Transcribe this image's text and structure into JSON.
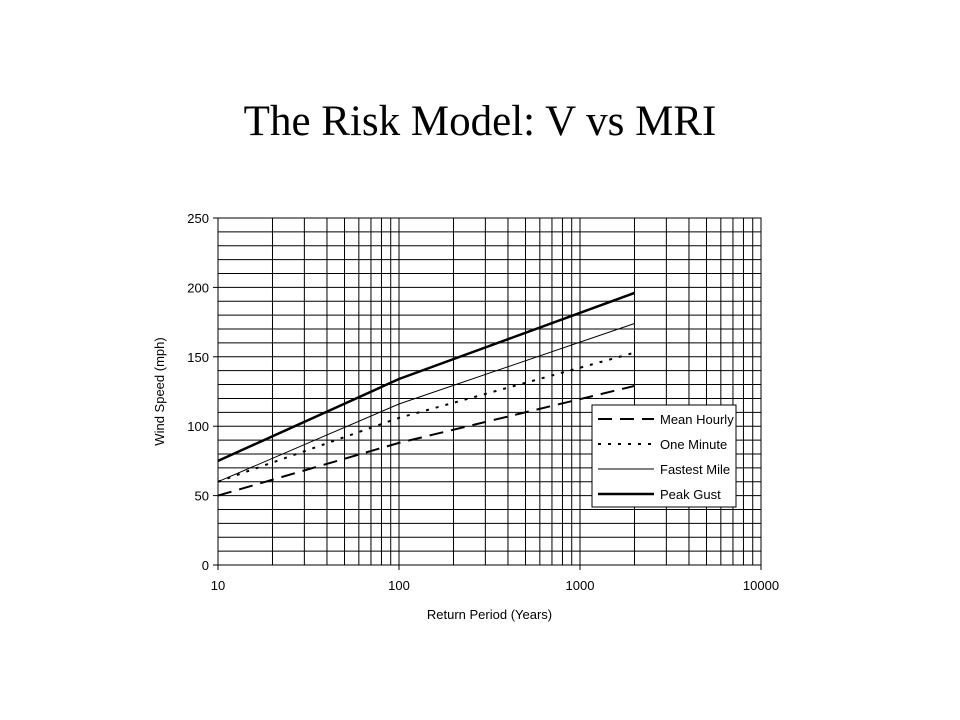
{
  "slide": {
    "title": "The Risk Model: V vs MRI"
  },
  "chart_data": {
    "type": "line",
    "title": "",
    "xlabel": "Return Period (Years)",
    "ylabel": "Wind Speed (mph)",
    "x_scale": "log",
    "xlim": [
      10,
      10000
    ],
    "ylim": [
      0,
      250
    ],
    "x_ticks": [
      "10",
      "100",
      "1000",
      "10000"
    ],
    "y_ticks": [
      "0",
      "50",
      "100",
      "150",
      "200",
      "250"
    ],
    "grid": true,
    "legend_position": "lower-right",
    "series": [
      {
        "name": "Mean Hourly",
        "style": "dashed",
        "x": [
          10,
          100,
          2000
        ],
        "y": [
          50,
          88,
          129
        ]
      },
      {
        "name": "One Minute",
        "style": "dotted",
        "x": [
          10,
          100,
          2000
        ],
        "y": [
          60,
          106,
          153
        ]
      },
      {
        "name": "Fastest Mile",
        "style": "thin",
        "x": [
          10,
          100,
          2000
        ],
        "y": [
          60,
          116,
          174
        ]
      },
      {
        "name": "Peak Gust",
        "style": "thick",
        "x": [
          10,
          100,
          2000
        ],
        "y": [
          75,
          134,
          196
        ]
      }
    ]
  }
}
